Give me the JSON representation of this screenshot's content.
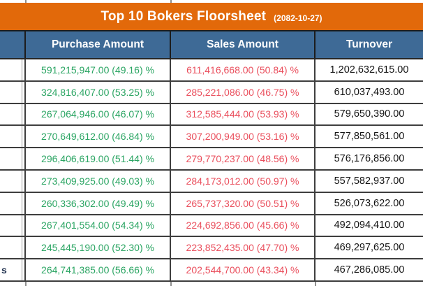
{
  "title": {
    "text": "Top 10 Bokers Floorsheet",
    "date": "(2082-10-27)"
  },
  "table": {
    "columns": {
      "broker": "",
      "purchase": "Purchase Amount",
      "sales": "Sales Amount",
      "turnover": "Turnover"
    },
    "rows": [
      {
        "broker": "",
        "purchase": "591,215,947.00 (49.16) %",
        "sales": "611,416,668.00 (50.84) %",
        "turnover": "1,202,632,615.00"
      },
      {
        "broker": "",
        "purchase": "324,816,407.00 (53.25) %",
        "sales": "285,221,086.00 (46.75) %",
        "turnover": "610,037,493.00"
      },
      {
        "broker": "",
        "purchase": "267,064,946.00 (46.07) %",
        "sales": "312,585,444.00 (53.93) %",
        "turnover": "579,650,390.00"
      },
      {
        "broker": "",
        "purchase": "270,649,612.00 (46.84) %",
        "sales": "307,200,949.00 (53.16) %",
        "turnover": "577,850,561.00"
      },
      {
        "broker": "",
        "purchase": "296,406,619.00 (51.44) %",
        "sales": "279,770,237.00 (48.56) %",
        "turnover": "576,176,856.00"
      },
      {
        "broker": "",
        "purchase": "273,409,925.00 (49.03) %",
        "sales": "284,173,012.00 (50.97) %",
        "turnover": "557,582,937.00"
      },
      {
        "broker": "",
        "purchase": "260,336,302.00 (49.49) %",
        "sales": "265,737,320.00 (50.51) %",
        "turnover": "526,073,622.00"
      },
      {
        "broker": "",
        "purchase": "267,401,554.00 (54.34) %",
        "sales": "224,692,856.00 (45.66) %",
        "turnover": "492,094,410.00"
      },
      {
        "broker": "",
        "purchase": "245,445,190.00 (52.30) %",
        "sales": "223,852,435.00 (47.70) %",
        "turnover": "469,297,625.00"
      },
      {
        "broker": "s",
        "purchase": "264,741,385.00 (56.66) %",
        "sales": "202,544,700.00 (43.34) %",
        "turnover": "467,286,085.00"
      }
    ]
  },
  "colors": {
    "title_bar": "#e2690a",
    "header_bg": "#3e6a96",
    "header_text": "#ffffff",
    "purchase_text": "#2ba563",
    "sales_text": "#ea4f5d",
    "turnover_text": "#141414",
    "broker_text": "#1e2f4d",
    "border": "#3e3e3e"
  }
}
